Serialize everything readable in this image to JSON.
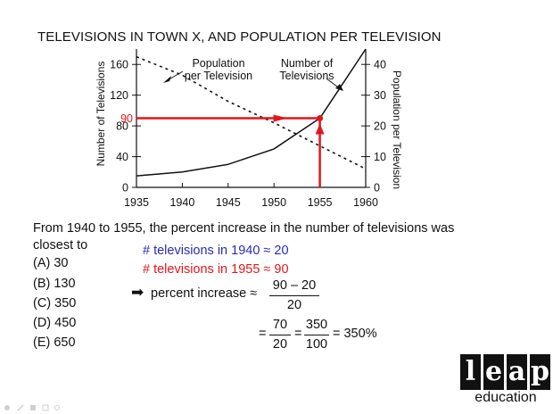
{
  "title": "TELEVISIONS IN TOWN X, AND POPULATION PER TELEVISION",
  "chart_data": {
    "type": "line",
    "title": "TELEVISIONS IN TOWN X, AND POPULATION PER TELEVISION",
    "x_ticks": [
      "1935",
      "1940",
      "1945",
      "1950",
      "1955",
      "1960"
    ],
    "x": [
      1935,
      1940,
      1945,
      1950,
      1955,
      1960
    ],
    "left_axis": {
      "label": "Number of Televisions",
      "ticks": [
        "0",
        "40",
        "80",
        "120",
        "160"
      ],
      "range": [
        0,
        180
      ]
    },
    "right_axis": {
      "label": "Population per Television",
      "ticks": [
        "0",
        "10",
        "20",
        "30",
        "40"
      ],
      "range": [
        0,
        45
      ]
    },
    "series": [
      {
        "name": "Number of Televisions",
        "axis": "left",
        "style": "solid",
        "x": [
          1935,
          1940,
          1945,
          1950,
          1955,
          1960
        ],
        "values": [
          15,
          20,
          30,
          50,
          90,
          180
        ]
      },
      {
        "name": "Population per Television",
        "axis": "right",
        "style": "dashed",
        "x": [
          1935,
          1940,
          1945,
          1950,
          1955,
          1960
        ],
        "values": [
          42.5,
          36.5,
          28,
          21,
          13.5,
          6
        ]
      }
    ],
    "highlight": {
      "label": "90",
      "x": 1955,
      "y": 90,
      "color": "#e0161b"
    },
    "annotations": [
      "Population per Television",
      "Number of Televisions"
    ]
  },
  "annotations": {
    "pop_line1": "Population",
    "pop_line2": "per Television",
    "tv_line1": "Number of",
    "tv_line2": "Televisions"
  },
  "question": "From 1940 to 1955, the percent increase in the number of televisions was closest to",
  "choices": [
    "(A) 30",
    "(B) 130",
    "(C) 350",
    "(D) 450",
    "(E) 650"
  ],
  "work": {
    "line1": "# televisions in 1940 ≈ 20",
    "line2": "# televisions in 1955 ≈ 90",
    "arrow": "➡",
    "pct_label": "percent increase ≈",
    "frac1_num": "90 – 20",
    "frac1_den": "20",
    "eq1": "=",
    "frac2_num": "70",
    "frac2_den": "20",
    "eq2": "=",
    "frac3_num": "350",
    "frac3_den": "100",
    "result": "= 350%"
  },
  "logo": {
    "letters": [
      "l",
      "e",
      "a",
      "p"
    ],
    "sub": "education"
  },
  "colors": {
    "red": "#e0161b",
    "blue": "#2a2ab8",
    "ink": "#111111"
  }
}
